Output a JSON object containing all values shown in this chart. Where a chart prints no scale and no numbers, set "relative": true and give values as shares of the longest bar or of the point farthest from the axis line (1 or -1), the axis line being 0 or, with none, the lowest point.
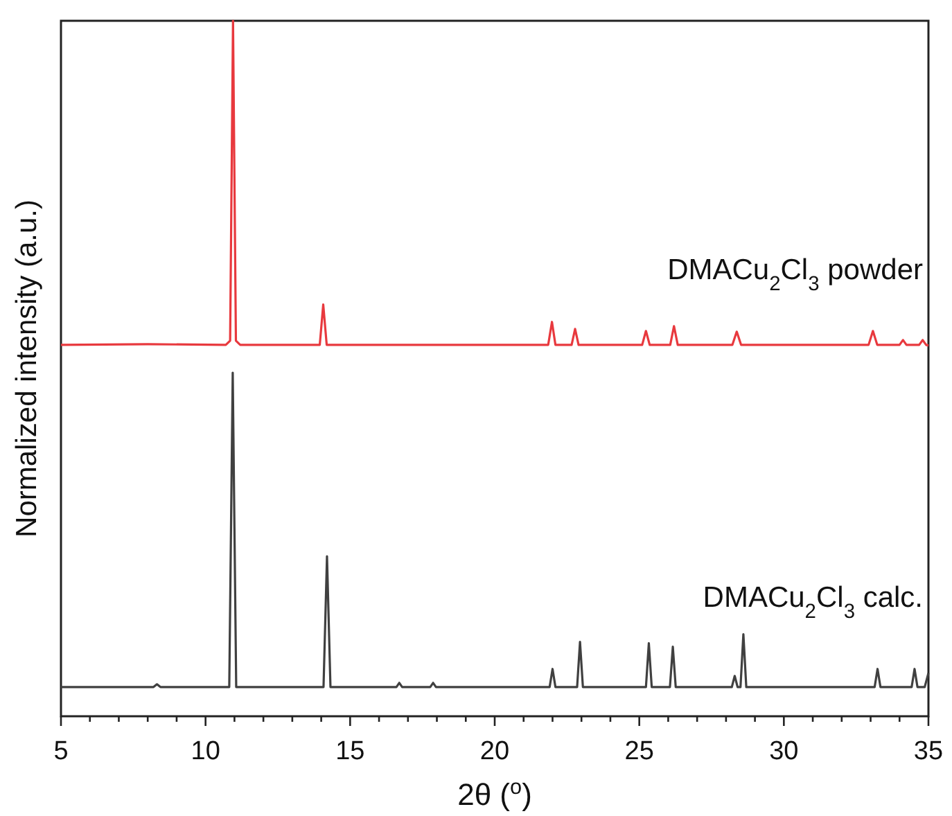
{
  "chart_data": {
    "type": "line",
    "relative": true,
    "xlabel": "2θ ($^{o}$)",
    "ylabel": "Normalized intensity (a.u.)",
    "xlim": [
      5,
      35
    ],
    "xticks": [
      5,
      {
        "value": 6,
        "label": null
      },
      {
        "value": 7,
        "label": null
      },
      {
        "value": 8,
        "label": null
      },
      {
        "value": 9,
        "label": null
      },
      10,
      {
        "value": 11,
        "label": null
      },
      {
        "value": 12,
        "label": null
      },
      {
        "value": 13,
        "label": null
      },
      {
        "value": 14,
        "label": null
      },
      15,
      {
        "value": 16,
        "label": null
      },
      {
        "value": 17,
        "label": null
      },
      {
        "value": 18,
        "label": null
      },
      {
        "value": 19,
        "label": null
      },
      20,
      {
        "value": 21,
        "label": null
      },
      {
        "value": 22,
        "label": null
      },
      {
        "value": 23,
        "label": null
      },
      {
        "value": 24,
        "label": null
      },
      25,
      {
        "value": 26,
        "label": null
      },
      {
        "value": 27,
        "label": null
      },
      {
        "value": 28,
        "label": null
      },
      {
        "value": 29,
        "label": null
      },
      30,
      {
        "value": 31,
        "label": null
      },
      {
        "value": 32,
        "label": null
      },
      {
        "value": 33,
        "label": null
      },
      {
        "value": 34,
        "label": null
      },
      35
    ],
    "grid": false,
    "legend": false,
    "marker": "none",
    "line_style": "solid",
    "series": [
      {
        "name": "DMACu$_{2}$Cl$_{3}$ powder",
        "color": "#e8393e",
        "x": [
          5,
          8,
          10.7,
          10.85,
          10.95,
          11.05,
          11.2,
          13.95,
          14.07,
          14.19,
          21.85,
          21.98,
          22.1,
          22.66,
          22.78,
          22.9,
          25.1,
          25.23,
          25.36,
          26.07,
          26.2,
          26.33,
          28.22,
          28.37,
          28.52,
          32.93,
          33.08,
          33.23,
          34.0,
          34.12,
          34.24,
          34.68,
          34.8,
          34.92,
          35
        ],
        "values": [
          0.534,
          0.535,
          0.534,
          0.54,
          1.0,
          0.54,
          0.534,
          0.534,
          0.592,
          0.534,
          0.534,
          0.567,
          0.534,
          0.534,
          0.557,
          0.534,
          0.534,
          0.554,
          0.534,
          0.534,
          0.561,
          0.534,
          0.534,
          0.553,
          0.534,
          0.534,
          0.554,
          0.534,
          0.534,
          0.541,
          0.534,
          0.534,
          0.541,
          0.534,
          0.533
        ]
      },
      {
        "name": "DMACu$_{2}$Cl$_{3}$ calc.",
        "color": "#404040",
        "x": [
          5,
          8.2,
          8.32,
          8.44,
          10.82,
          10.94,
          11.06,
          14.08,
          14.2,
          14.32,
          16.6,
          16.7,
          16.8,
          17.77,
          17.87,
          17.97,
          21.9,
          22.0,
          22.1,
          22.85,
          22.95,
          23.05,
          25.23,
          25.33,
          25.43,
          26.06,
          26.16,
          26.26,
          28.2,
          28.3,
          28.4,
          28.5,
          28.6,
          28.7,
          33.14,
          33.24,
          33.34,
          34.42,
          34.52,
          34.62,
          34.87,
          35
        ],
        "values": [
          0.042,
          0.042,
          0.046,
          0.042,
          0.042,
          0.494,
          0.042,
          0.042,
          0.23,
          0.042,
          0.042,
          0.048,
          0.042,
          0.042,
          0.048,
          0.042,
          0.042,
          0.068,
          0.042,
          0.042,
          0.107,
          0.042,
          0.042,
          0.105,
          0.042,
          0.042,
          0.1,
          0.042,
          0.042,
          0.058,
          0.042,
          0.042,
          0.118,
          0.042,
          0.042,
          0.068,
          0.042,
          0.042,
          0.068,
          0.042,
          0.042,
          0.062
        ]
      }
    ]
  }
}
